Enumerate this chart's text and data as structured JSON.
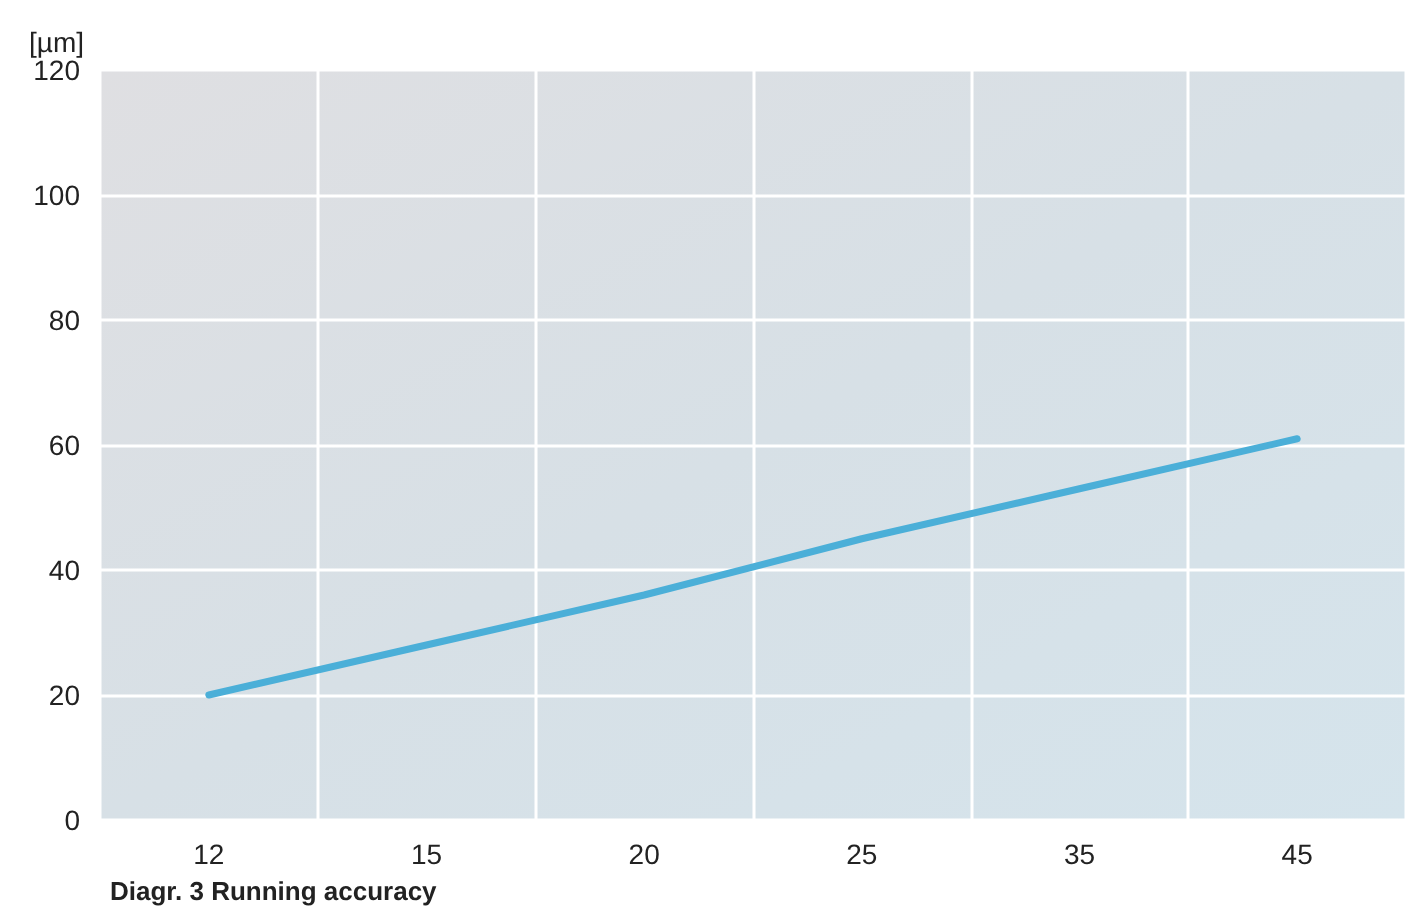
{
  "chart_data": {
    "type": "line",
    "title": "Diagr. 3 Running accuracy",
    "ylabel": "[µm]",
    "categories": [
      "12",
      "15",
      "20",
      "25",
      "35",
      "45"
    ],
    "series": [
      {
        "color": "#4bafd8",
        "values": [
          20,
          28,
          36,
          45,
          53,
          61
        ]
      }
    ],
    "ylim": [
      0,
      120
    ],
    "yticks": [
      0,
      20,
      40,
      60,
      80,
      100,
      120
    ],
    "grid": true,
    "marker": "none",
    "line_style": "solid"
  }
}
